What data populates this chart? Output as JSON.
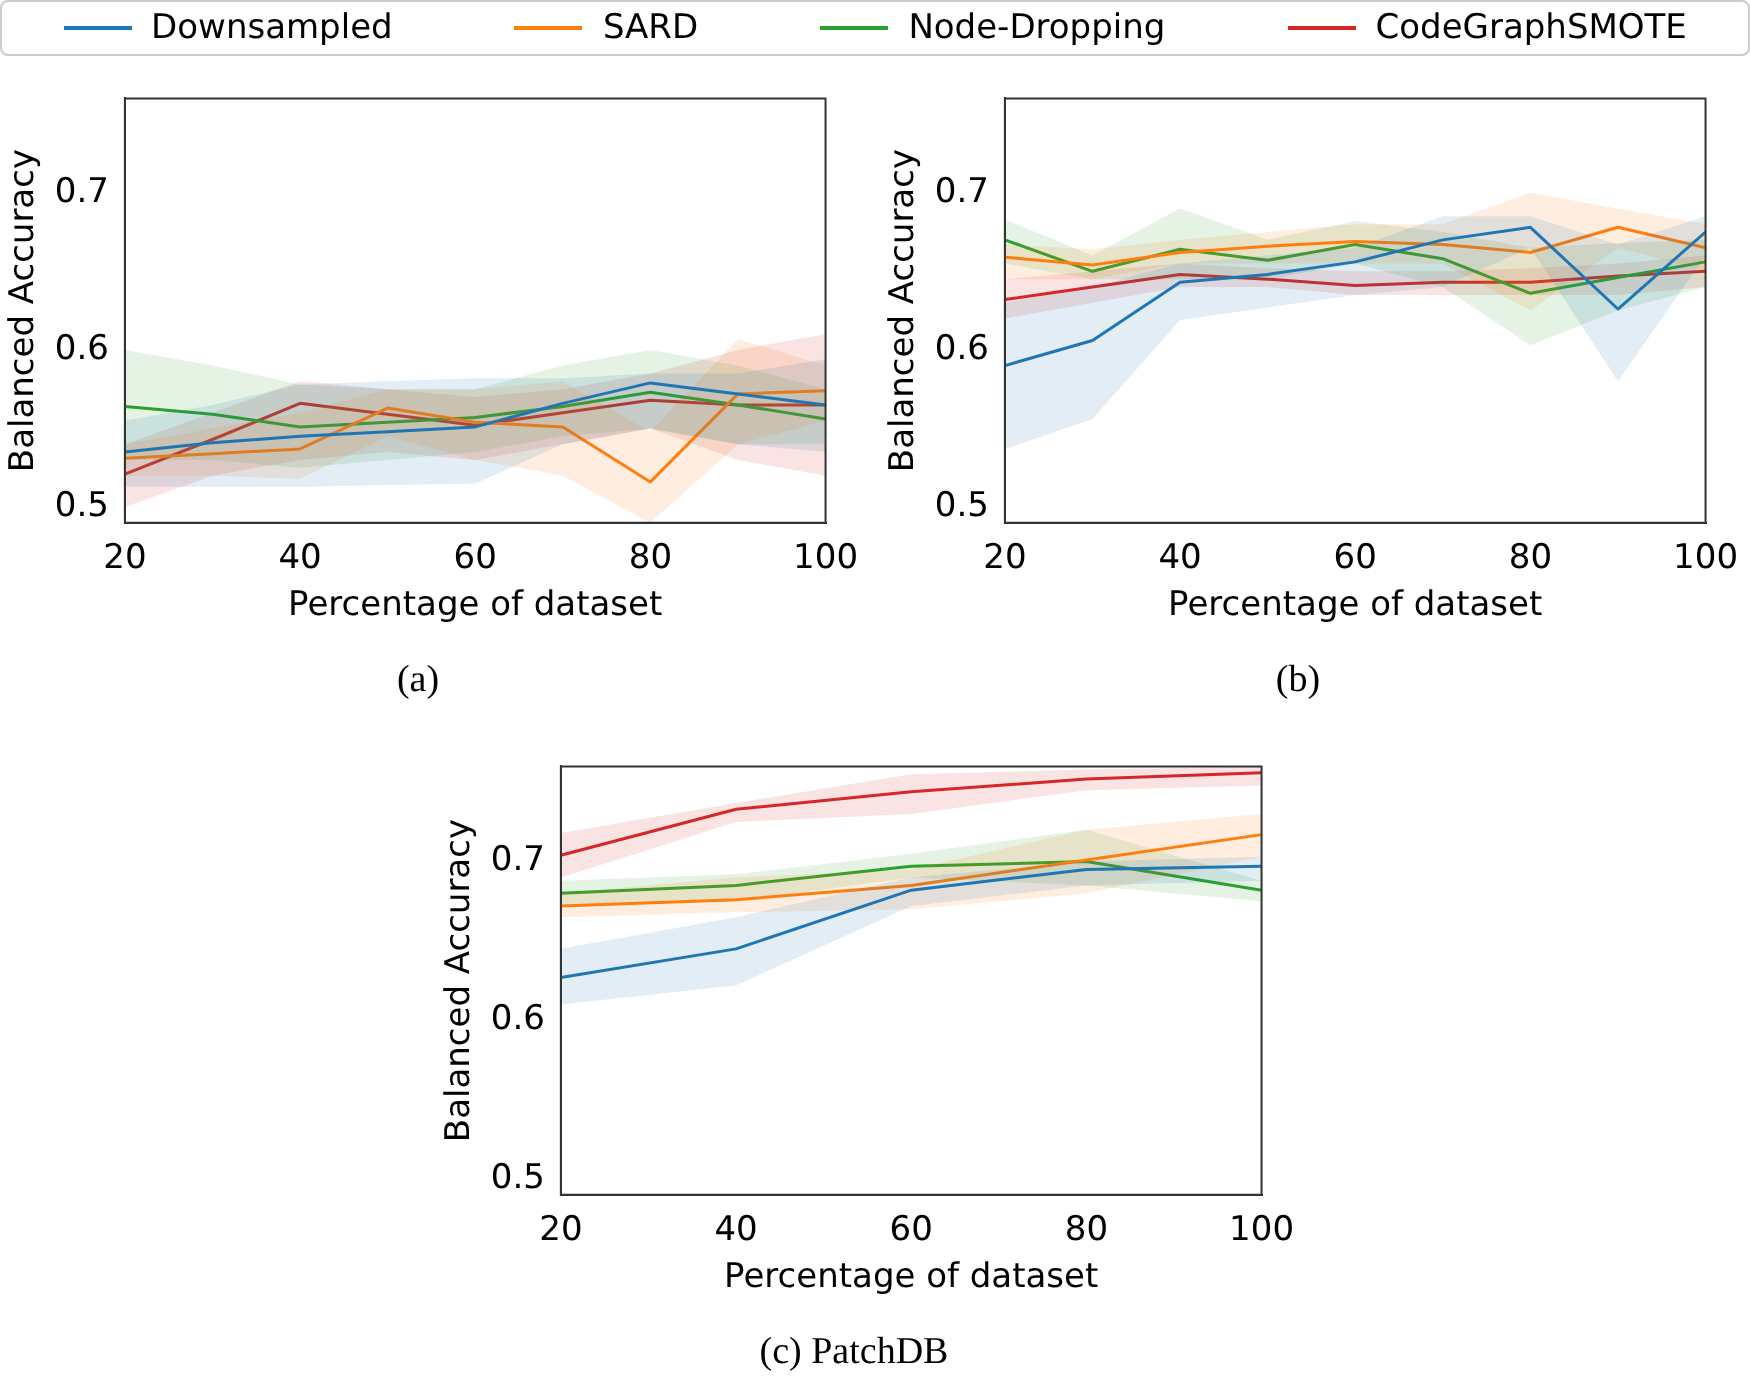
{
  "chart_data": [
    {
      "type": "line",
      "title": "(a)",
      "xlabel": "Percentage of dataset",
      "ylabel": "Balanced Accuracy",
      "x": [
        20,
        30,
        40,
        50,
        60,
        70,
        80,
        90,
        100
      ],
      "xlim": [
        20,
        100
      ],
      "xticks": [
        20,
        40,
        60,
        80,
        100
      ],
      "ylim": [
        0.49,
        0.76
      ],
      "yticks": [
        0.5,
        0.6,
        0.7
      ],
      "grid": false,
      "legend": "top",
      "marker": "none",
      "series": [
        {
          "name": "Downsampled",
          "color": "#1f77b4",
          "values": [
            0.535,
            0.541,
            0.545,
            0.548,
            0.551,
            0.566,
            0.579,
            0.572,
            0.565
          ],
          "lower": [
            0.513,
            0.513,
            0.513,
            0.514,
            0.515,
            0.54,
            0.55,
            0.54,
            0.535
          ],
          "upper": [
            0.555,
            0.565,
            0.578,
            0.58,
            0.582,
            0.582,
            0.585,
            0.585,
            0.594
          ]
        },
        {
          "name": "SARD",
          "color": "#ff7f0e",
          "values": [
            0.531,
            0.534,
            0.537,
            0.563,
            0.554,
            0.551,
            0.516,
            0.572,
            0.574
          ],
          "lower": [
            0.52,
            0.52,
            0.518,
            0.545,
            0.53,
            0.52,
            0.49,
            0.54,
            0.555
          ],
          "upper": [
            0.54,
            0.55,
            0.56,
            0.575,
            0.575,
            0.58,
            0.548,
            0.607,
            0.59
          ]
        },
        {
          "name": "Node-Dropping",
          "color": "#2ca02c",
          "values": [
            0.564,
            0.559,
            0.551,
            0.554,
            0.557,
            0.564,
            0.573,
            0.565,
            0.556
          ],
          "lower": [
            0.53,
            0.53,
            0.525,
            0.53,
            0.535,
            0.545,
            0.55,
            0.54,
            0.54
          ],
          "upper": [
            0.6,
            0.59,
            0.578,
            0.575,
            0.575,
            0.59,
            0.6,
            0.59,
            0.575
          ]
        },
        {
          "name": "CodeGraphSMOTE",
          "color": "#d62728",
          "values": [
            0.521,
            0.543,
            0.566,
            0.559,
            0.552,
            0.56,
            0.568,
            0.565,
            0.565
          ],
          "lower": [
            0.5,
            0.52,
            0.53,
            0.535,
            0.53,
            0.54,
            0.55,
            0.53,
            0.52
          ],
          "upper": [
            0.54,
            0.56,
            0.58,
            0.575,
            0.57,
            0.575,
            0.585,
            0.6,
            0.61
          ]
        }
      ]
    },
    {
      "type": "line",
      "title": "(b)",
      "xlabel": "Percentage of dataset",
      "ylabel": "Balanced Accuracy",
      "x": [
        20,
        30,
        40,
        50,
        60,
        70,
        80,
        90,
        100
      ],
      "xlim": [
        20,
        100
      ],
      "xticks": [
        20,
        40,
        60,
        80,
        100
      ],
      "ylim": [
        0.49,
        0.76
      ],
      "yticks": [
        0.5,
        0.6,
        0.7
      ],
      "grid": false,
      "marker": "none",
      "series": [
        {
          "color": "#1f77b4",
          "values": [
            0.59,
            0.606,
            0.643,
            0.648,
            0.656,
            0.67,
            0.678,
            0.626,
            0.675
          ],
          "lower": [
            0.537,
            0.556,
            0.619,
            0.627,
            0.635,
            0.64,
            0.665,
            0.58,
            0.66
          ],
          "upper": [
            0.63,
            0.64,
            0.655,
            0.66,
            0.665,
            0.685,
            0.685,
            0.667,
            0.685
          ]
        },
        {
          "color": "#ff7f0e",
          "values": [
            0.659,
            0.654,
            0.662,
            0.666,
            0.669,
            0.667,
            0.662,
            0.678,
            0.665
          ],
          "lower": [
            0.645,
            0.645,
            0.655,
            0.655,
            0.655,
            0.655,
            0.625,
            0.665,
            0.65
          ],
          "upper": [
            0.667,
            0.664,
            0.67,
            0.675,
            0.68,
            0.68,
            0.7,
            0.69,
            0.68
          ]
        },
        {
          "color": "#2ca02c",
          "values": [
            0.67,
            0.65,
            0.664,
            0.657,
            0.667,
            0.658,
            0.636,
            0.646,
            0.656
          ],
          "lower": [
            0.655,
            0.645,
            0.645,
            0.645,
            0.655,
            0.64,
            0.603,
            0.625,
            0.64
          ],
          "upper": [
            0.683,
            0.66,
            0.69,
            0.67,
            0.682,
            0.675,
            0.665,
            0.668,
            0.67
          ]
        },
        {
          "color": "#d62728",
          "values": [
            0.632,
            0.64,
            0.648,
            0.645,
            0.641,
            0.643,
            0.643,
            0.647,
            0.65
          ],
          "lower": [
            0.62,
            0.63,
            0.64,
            0.64,
            0.635,
            0.635,
            0.635,
            0.635,
            0.64
          ],
          "upper": [
            0.645,
            0.65,
            0.655,
            0.652,
            0.65,
            0.65,
            0.652,
            0.655,
            0.66
          ]
        }
      ]
    },
    {
      "type": "line",
      "title": "(c) PatchDB",
      "xlabel": "Percentage of dataset",
      "ylabel": "Balanced Accuracy",
      "x": [
        20,
        40,
        60,
        80,
        100
      ],
      "xlim": [
        20,
        100
      ],
      "xticks": [
        20,
        40,
        60,
        80,
        100
      ],
      "ylim": [
        0.49,
        0.76
      ],
      "yticks": [
        0.5,
        0.6,
        0.7
      ],
      "grid": false,
      "marker": "none",
      "series": [
        {
          "color": "#1f77b4",
          "values": [
            0.627,
            0.645,
            0.682,
            0.695,
            0.697
          ],
          "lower": [
            0.61,
            0.622,
            0.672,
            0.685,
            0.688
          ],
          "upper": [
            0.645,
            0.665,
            0.69,
            0.7,
            0.703
          ]
        },
        {
          "color": "#ff7f0e",
          "values": [
            0.672,
            0.676,
            0.685,
            0.701,
            0.717
          ],
          "lower": [
            0.665,
            0.668,
            0.67,
            0.68,
            0.703
          ],
          "upper": [
            0.68,
            0.69,
            0.695,
            0.72,
            0.73
          ]
        },
        {
          "color": "#2ca02c",
          "values": [
            0.68,
            0.685,
            0.697,
            0.7,
            0.682
          ],
          "lower": [
            0.672,
            0.675,
            0.69,
            0.685,
            0.675
          ],
          "upper": [
            0.688,
            0.692,
            0.705,
            0.72,
            0.688
          ]
        },
        {
          "color": "#d62728",
          "values": [
            0.704,
            0.733,
            0.744,
            0.752,
            0.756
          ],
          "lower": [
            0.69,
            0.725,
            0.73,
            0.745,
            0.748
          ],
          "upper": [
            0.718,
            0.737,
            0.755,
            0.758,
            0.76
          ]
        }
      ]
    }
  ]
}
